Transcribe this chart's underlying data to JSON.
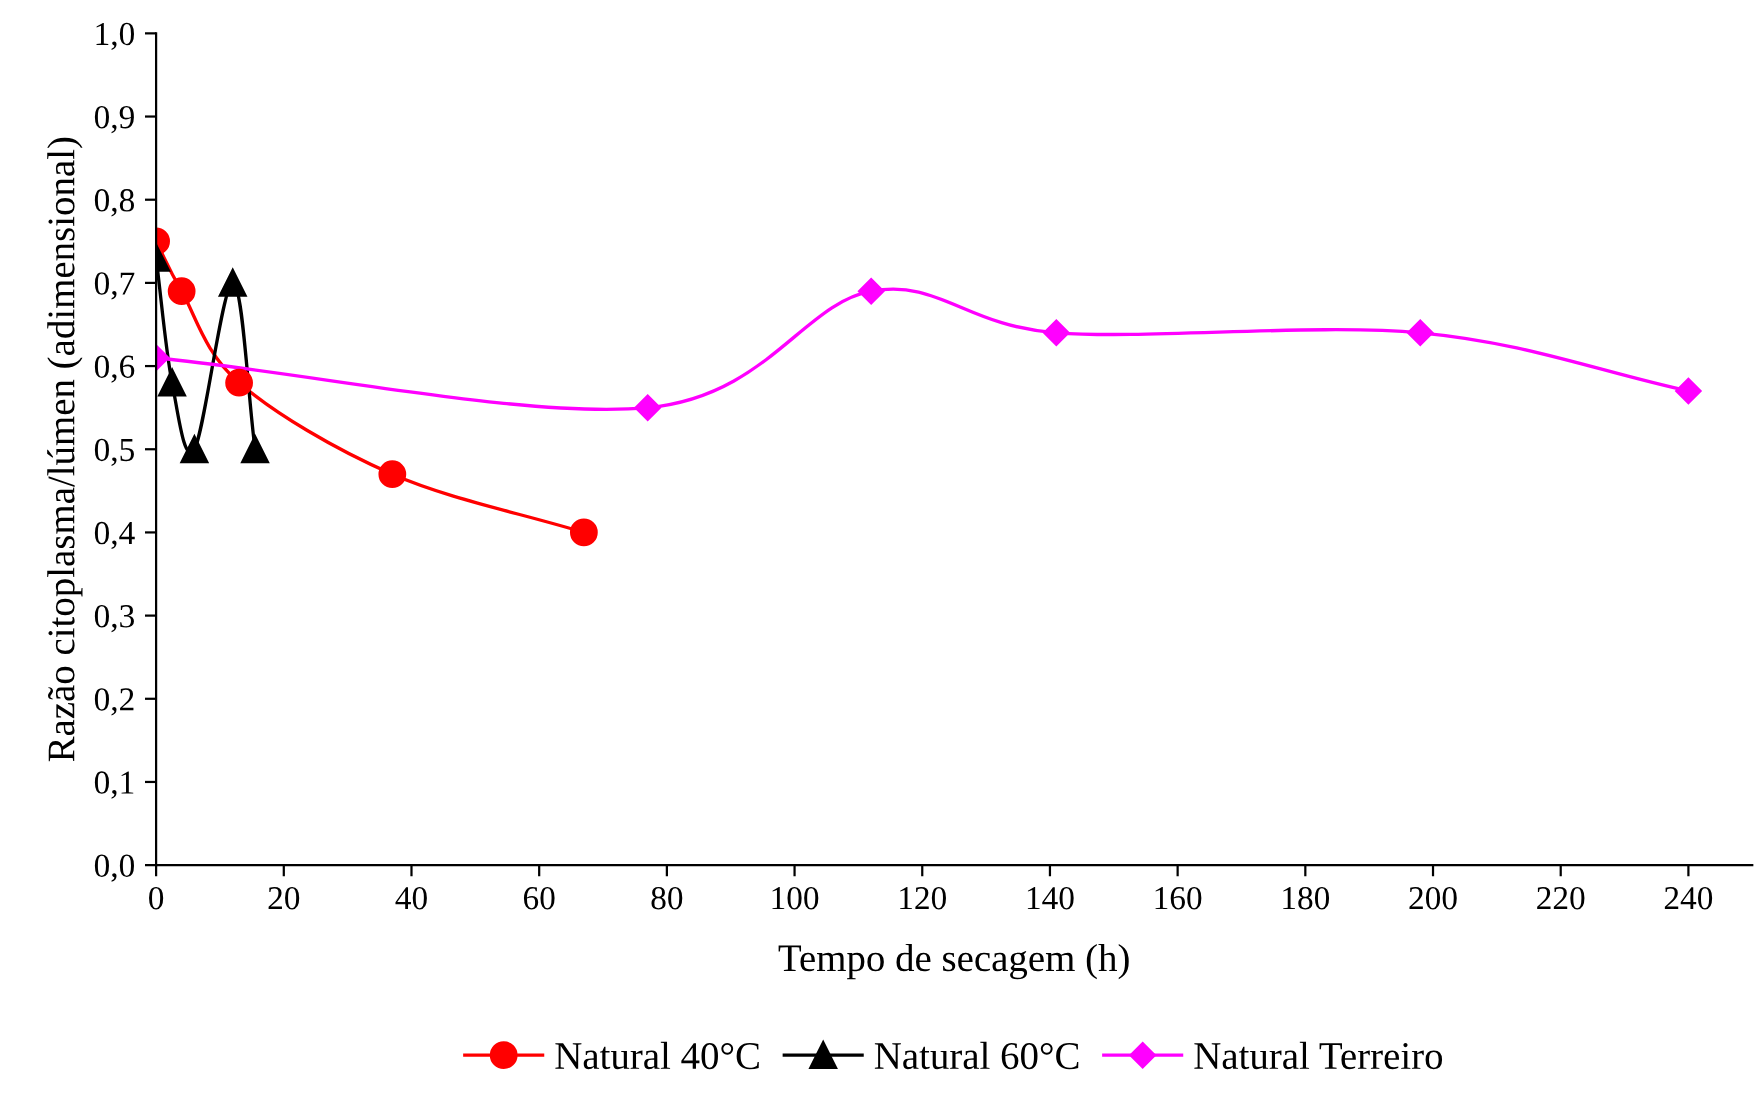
{
  "chart_data": {
    "type": "line",
    "xlabel": "Tempo de secagem (h)",
    "ylabel": "Razão citoplasma/lúmen (adimensional)",
    "series": [
      {
        "name": "Natural 40°C",
        "color": "#ff0000",
        "marker": "circle",
        "x": [
          0,
          4,
          13,
          37,
          67
        ],
        "values": [
          0.75,
          0.69,
          0.58,
          0.47,
          0.4
        ]
      },
      {
        "name": "Natural 60°C",
        "color": "#000000",
        "marker": "triangle",
        "x": [
          0,
          2.5,
          6,
          12,
          15.5
        ],
        "values": [
          0.73,
          0.58,
          0.5,
          0.7,
          0.5
        ]
      },
      {
        "name": "Natural Terreiro",
        "color": "#ff00ff",
        "marker": "diamond",
        "x": [
          0,
          77,
          112,
          141,
          198,
          240
        ],
        "values": [
          0.61,
          0.55,
          0.69,
          0.64,
          0.64,
          0.57
        ]
      }
    ],
    "xlim": [
      0,
      250
    ],
    "xticks": [
      0,
      20,
      40,
      60,
      80,
      100,
      120,
      140,
      160,
      180,
      200,
      220,
      240
    ],
    "ylim": [
      0,
      1
    ],
    "yticks": [
      {
        "value": 0,
        "label": "0,0"
      },
      {
        "value": 0.1,
        "label": "0,1"
      },
      {
        "value": 0.2,
        "label": "0,2"
      },
      {
        "value": 0.3,
        "label": "0,3"
      },
      {
        "value": 0.4,
        "label": "0,4"
      },
      {
        "value": 0.5,
        "label": "0,5"
      },
      {
        "value": 0.6,
        "label": "0,6"
      },
      {
        "value": 0.7,
        "label": "0,7"
      },
      {
        "value": 0.8,
        "label": "0,8"
      },
      {
        "value": 0.9,
        "label": "0,9"
      },
      {
        "value": 1,
        "label": "1,0"
      }
    ],
    "grid": false,
    "legend": "bottom"
  }
}
